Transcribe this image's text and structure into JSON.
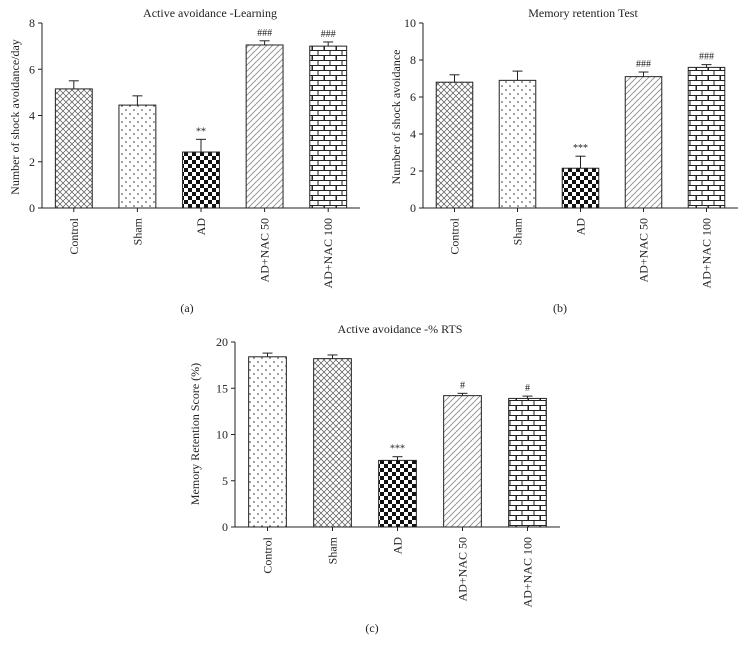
{
  "chart_data": [
    {
      "type": "bar",
      "panel_label": "(a)",
      "title": "Active avoidance -Learning",
      "xlabel": "",
      "ylabel": "Number of shock avoidance/day",
      "ylim": [
        0,
        8
      ],
      "yticks": [
        0,
        2,
        4,
        6,
        8
      ],
      "categories": [
        "Control",
        "Sham",
        "AD",
        "AD+NAC 50",
        "AD+NAC 100"
      ],
      "values": [
        5.15,
        4.45,
        2.42,
        7.05,
        7.0
      ],
      "errors": [
        0.35,
        0.4,
        0.55,
        0.18,
        0.18
      ],
      "significance": [
        "",
        "",
        "**",
        "###",
        "###"
      ],
      "patterns": [
        "crosshatch",
        "dots",
        "checker",
        "diagonal",
        "brick"
      ]
    },
    {
      "type": "bar",
      "panel_label": "(b)",
      "title": "Memory retention Test",
      "xlabel": "",
      "ylabel": "Number of shock avoidance",
      "ylim": [
        0,
        10
      ],
      "yticks": [
        0,
        2,
        4,
        6,
        8,
        10
      ],
      "categories": [
        "Control",
        "Sham",
        "AD",
        "AD+NAC 50",
        "AD+NAC 100"
      ],
      "values": [
        6.8,
        6.9,
        2.15,
        7.1,
        7.6
      ],
      "errors": [
        0.4,
        0.5,
        0.65,
        0.25,
        0.15
      ],
      "significance": [
        "",
        "",
        "***",
        "###",
        "###"
      ],
      "patterns": [
        "crosshatch",
        "dots",
        "checker",
        "diagonal",
        "brick"
      ]
    },
    {
      "type": "bar",
      "panel_label": "(c)",
      "title": "Active avoidance -% RTS",
      "xlabel": "",
      "ylabel": "Memory Retention Score (%)",
      "ylim": [
        0,
        20
      ],
      "yticks": [
        0,
        5,
        10,
        15,
        20
      ],
      "categories": [
        "Control",
        "Sham",
        "AD",
        "AD+NAC 50",
        "AD+NAC 100"
      ],
      "values": [
        18.4,
        18.2,
        7.2,
        14.2,
        13.9
      ],
      "errors": [
        0.4,
        0.4,
        0.4,
        0.25,
        0.25
      ],
      "significance": [
        "",
        "",
        "***",
        "#",
        "#"
      ],
      "patterns": [
        "dots",
        "crosshatch",
        "checker",
        "diagonal",
        "brick"
      ]
    }
  ]
}
